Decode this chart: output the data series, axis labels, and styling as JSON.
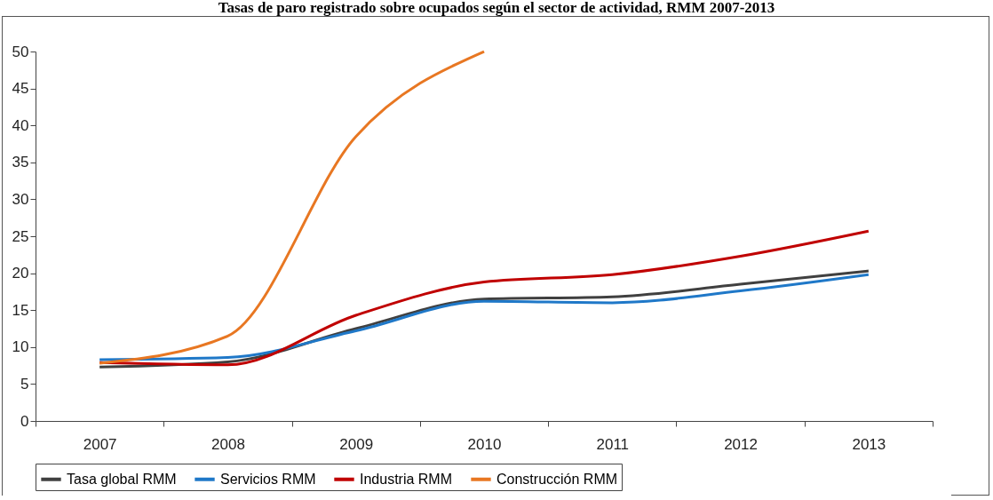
{
  "chart_data": {
    "type": "line",
    "title": "Tasas de paro registrado sobre ocupados según el sector de actividad, RMM 2007-2013",
    "categories": [
      "2007",
      "2008",
      "2009",
      "2010",
      "2011",
      "2012",
      "2013"
    ],
    "series": [
      {
        "name": "Tasa global RMM",
        "color": "#404040",
        "values": [
          7.3,
          8.0,
          12.5,
          16.5,
          16.8,
          18.5,
          20.3
        ]
      },
      {
        "name": "Servicios RMM",
        "color": "#1f78c8",
        "values": [
          8.3,
          8.6,
          12.2,
          16.2,
          16.0,
          17.6,
          19.8
        ]
      },
      {
        "name": "Industria RMM",
        "color": "#c00000",
        "values": [
          7.9,
          7.6,
          14.3,
          18.8,
          19.8,
          22.3,
          25.7
        ]
      },
      {
        "name": "Construcción RMM",
        "color": "#e87722",
        "values": [
          7.8,
          11.5,
          38.5,
          50,
          null,
          null,
          null
        ]
      }
    ],
    "ylim": [
      0,
      50
    ],
    "yticks": [
      0,
      5,
      10,
      15,
      20,
      25,
      30,
      35,
      40,
      45,
      50
    ],
    "grid": false,
    "legend": "bottom"
  }
}
